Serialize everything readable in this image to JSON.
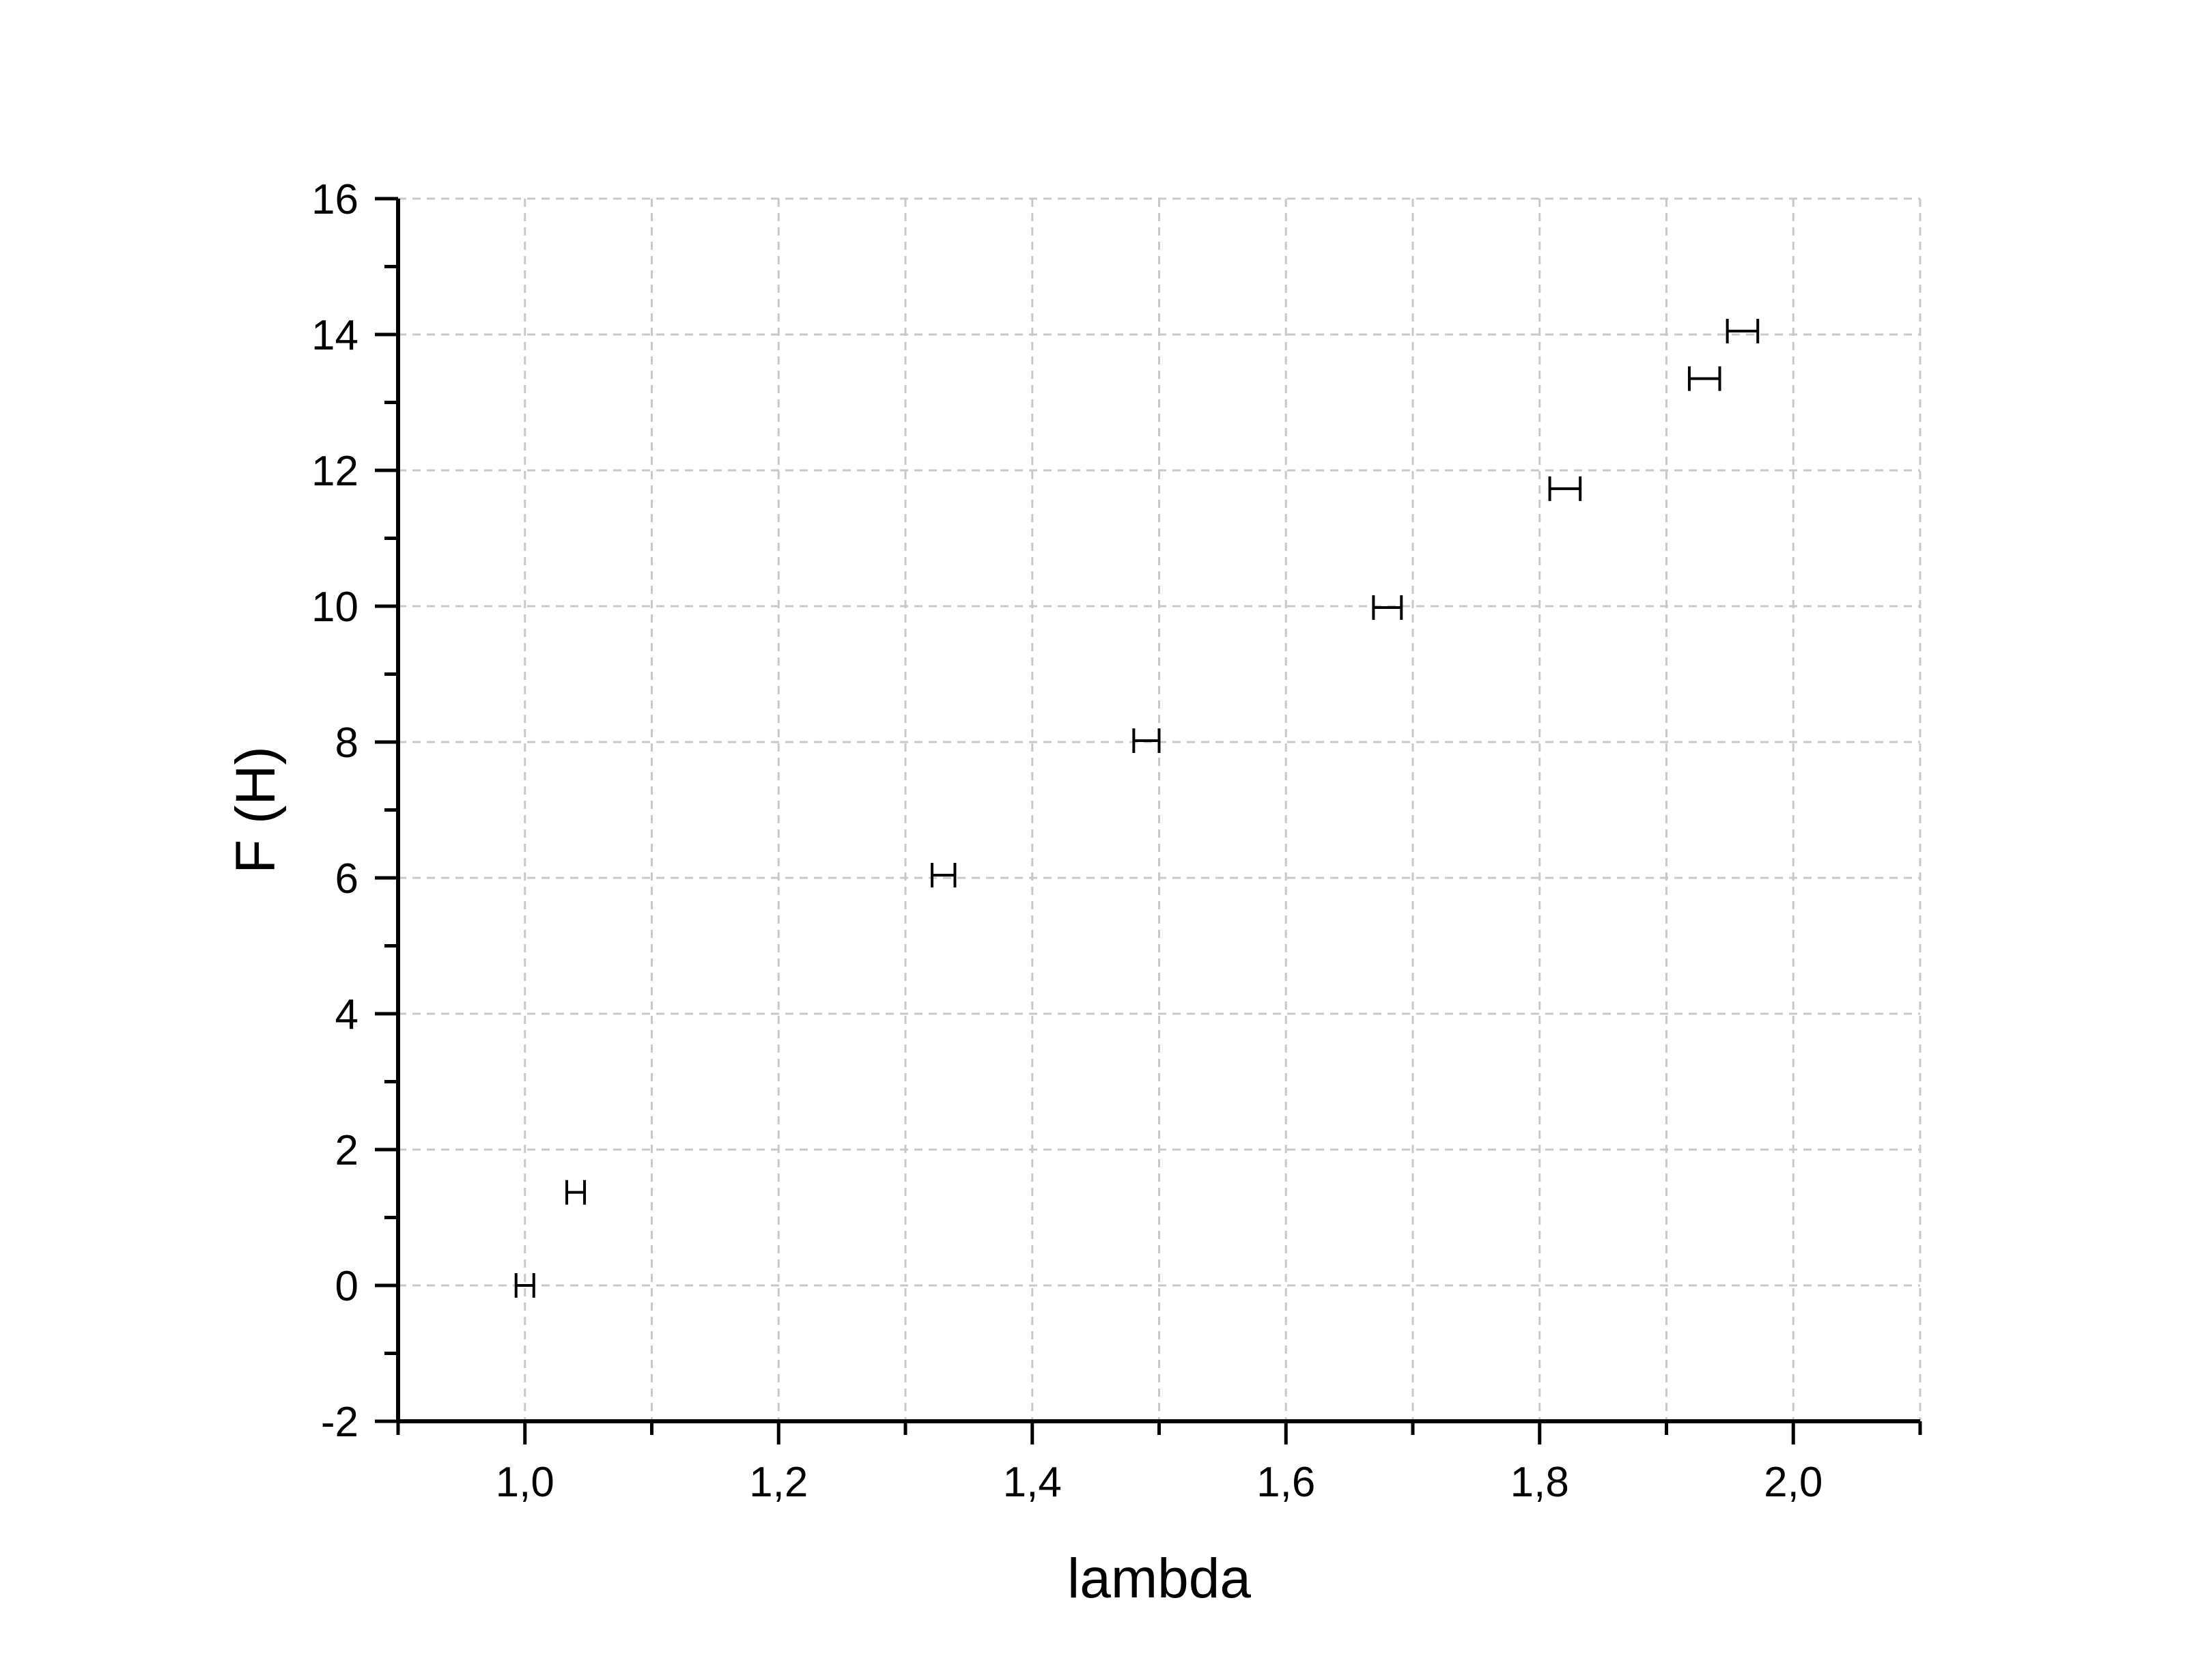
{
  "chart_data": {
    "type": "scatter",
    "xlabel": "lambda",
    "ylabel": "F (H)",
    "xlim": [
      0.9,
      2.1
    ],
    "ylim": [
      -2,
      16
    ],
    "x_ticks": [
      1.0,
      1.2,
      1.4,
      1.6,
      1.8,
      2.0
    ],
    "x_tick_labels": [
      "1,0",
      "1,2",
      "1,4",
      "1,6",
      "1,8",
      "2,0"
    ],
    "y_ticks": [
      -2,
      0,
      2,
      4,
      6,
      8,
      10,
      12,
      14,
      16
    ],
    "y_tick_labels": [
      "-2",
      "0",
      "2",
      "4",
      "6",
      "8",
      "10",
      "12",
      "14",
      "16"
    ],
    "grid": true,
    "legend": "none",
    "series": [
      {
        "marker": "horizontal-error-bar",
        "x": [
          1.0,
          1.04,
          1.33,
          1.49,
          1.68,
          1.82,
          1.93,
          1.96
        ],
        "y": [
          0.0,
          1.37,
          6.04,
          8.02,
          9.98,
          11.73,
          13.35,
          14.05
        ],
        "x_err": [
          0.007,
          0.007,
          0.009,
          0.01,
          0.011,
          0.012,
          0.012,
          0.012
        ]
      }
    ],
    "colors": {
      "axis": "#000000",
      "grid": "#c8c8c8",
      "marker": "#000000"
    }
  }
}
